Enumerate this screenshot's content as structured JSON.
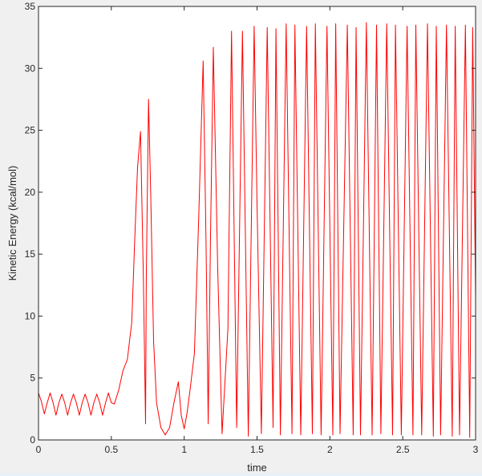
{
  "chart_data": {
    "type": "line",
    "title": "",
    "xlabel": "time",
    "ylabel": "Kinetic Energy (kcal/mol)",
    "xlim": [
      0,
      3
    ],
    "ylim": [
      0,
      35
    ],
    "xticks": [
      0,
      0.5,
      1,
      1.5,
      2,
      2.5,
      3
    ],
    "xtick_labels": [
      "0",
      "0.5",
      "1",
      "1.5",
      "2",
      "2.5",
      "3"
    ],
    "yticks": [
      0,
      5,
      10,
      15,
      20,
      25,
      30,
      35
    ],
    "ytick_labels": [
      "0",
      "5",
      "10",
      "15",
      "20",
      "25",
      "30",
      "35"
    ],
    "grid": false,
    "line_color": "#ff0000",
    "series": [
      {
        "x": [
          0.0,
          0.02,
          0.04,
          0.06,
          0.08,
          0.1,
          0.12,
          0.14,
          0.16,
          0.18,
          0.2,
          0.22,
          0.24,
          0.26,
          0.28,
          0.3,
          0.32,
          0.34,
          0.36,
          0.38,
          0.4,
          0.42,
          0.44,
          0.46,
          0.48,
          0.5,
          0.52,
          0.55,
          0.58,
          0.61,
          0.64,
          0.66,
          0.68,
          0.7,
          0.72,
          0.735,
          0.74,
          0.755,
          0.77,
          0.79,
          0.81,
          0.84,
          0.87,
          0.9,
          0.93,
          0.96,
          0.98,
          1.0,
          1.02,
          1.04,
          1.07,
          1.1,
          1.13,
          1.15,
          1.165,
          1.18,
          1.2,
          1.23,
          1.26,
          1.3,
          1.325,
          1.36,
          1.4,
          1.44,
          1.48,
          1.5,
          1.53,
          1.57,
          1.61,
          1.63,
          1.66,
          1.7,
          1.74,
          1.76,
          1.8,
          1.84,
          1.88,
          1.9,
          1.94,
          1.98,
          2.02,
          2.04,
          2.07,
          2.12,
          2.16,
          2.18,
          2.21,
          2.25,
          2.29,
          2.32,
          2.35,
          2.39,
          2.43,
          2.45,
          2.49,
          2.53,
          2.57,
          2.59,
          2.63,
          2.67,
          2.71,
          2.73,
          2.76,
          2.8,
          2.84,
          2.86,
          2.89,
          2.93,
          2.96,
          2.98,
          3.0
        ],
        "y": [
          3.8,
          3.1,
          2.1,
          3.0,
          3.8,
          3.0,
          2.0,
          3.0,
          3.7,
          3.0,
          2.0,
          3.0,
          3.7,
          3.0,
          2.0,
          3.0,
          3.7,
          3.0,
          2.0,
          3.0,
          3.7,
          3.0,
          2.0,
          3.0,
          3.8,
          3.0,
          2.9,
          4.0,
          5.6,
          6.5,
          9.5,
          16.0,
          22.0,
          24.9,
          13.0,
          1.3,
          13.0,
          27.5,
          20.0,
          8.0,
          3.0,
          1.0,
          0.4,
          1.0,
          3.0,
          4.7,
          2.0,
          0.9,
          2.2,
          4.0,
          7.0,
          18.0,
          30.6,
          16.0,
          1.3,
          16.0,
          31.7,
          14.0,
          0.5,
          9.0,
          33.0,
          1.0,
          33.0,
          0.3,
          33.4,
          19.0,
          0.5,
          33.3,
          1.0,
          33.2,
          0.4,
          33.6,
          0.5,
          33.5,
          0.4,
          33.4,
          0.5,
          33.6,
          0.4,
          33.4,
          0.4,
          33.6,
          0.5,
          33.5,
          0.4,
          33.3,
          0.4,
          33.7,
          0.4,
          33.5,
          0.5,
          33.6,
          0.4,
          33.5,
          0.4,
          33.4,
          0.4,
          33.5,
          0.4,
          33.6,
          0.3,
          33.4,
          0.4,
          33.5,
          0.3,
          33.4,
          0.4,
          33.5,
          0.2,
          33.3,
          11.4
        ]
      }
    ]
  }
}
